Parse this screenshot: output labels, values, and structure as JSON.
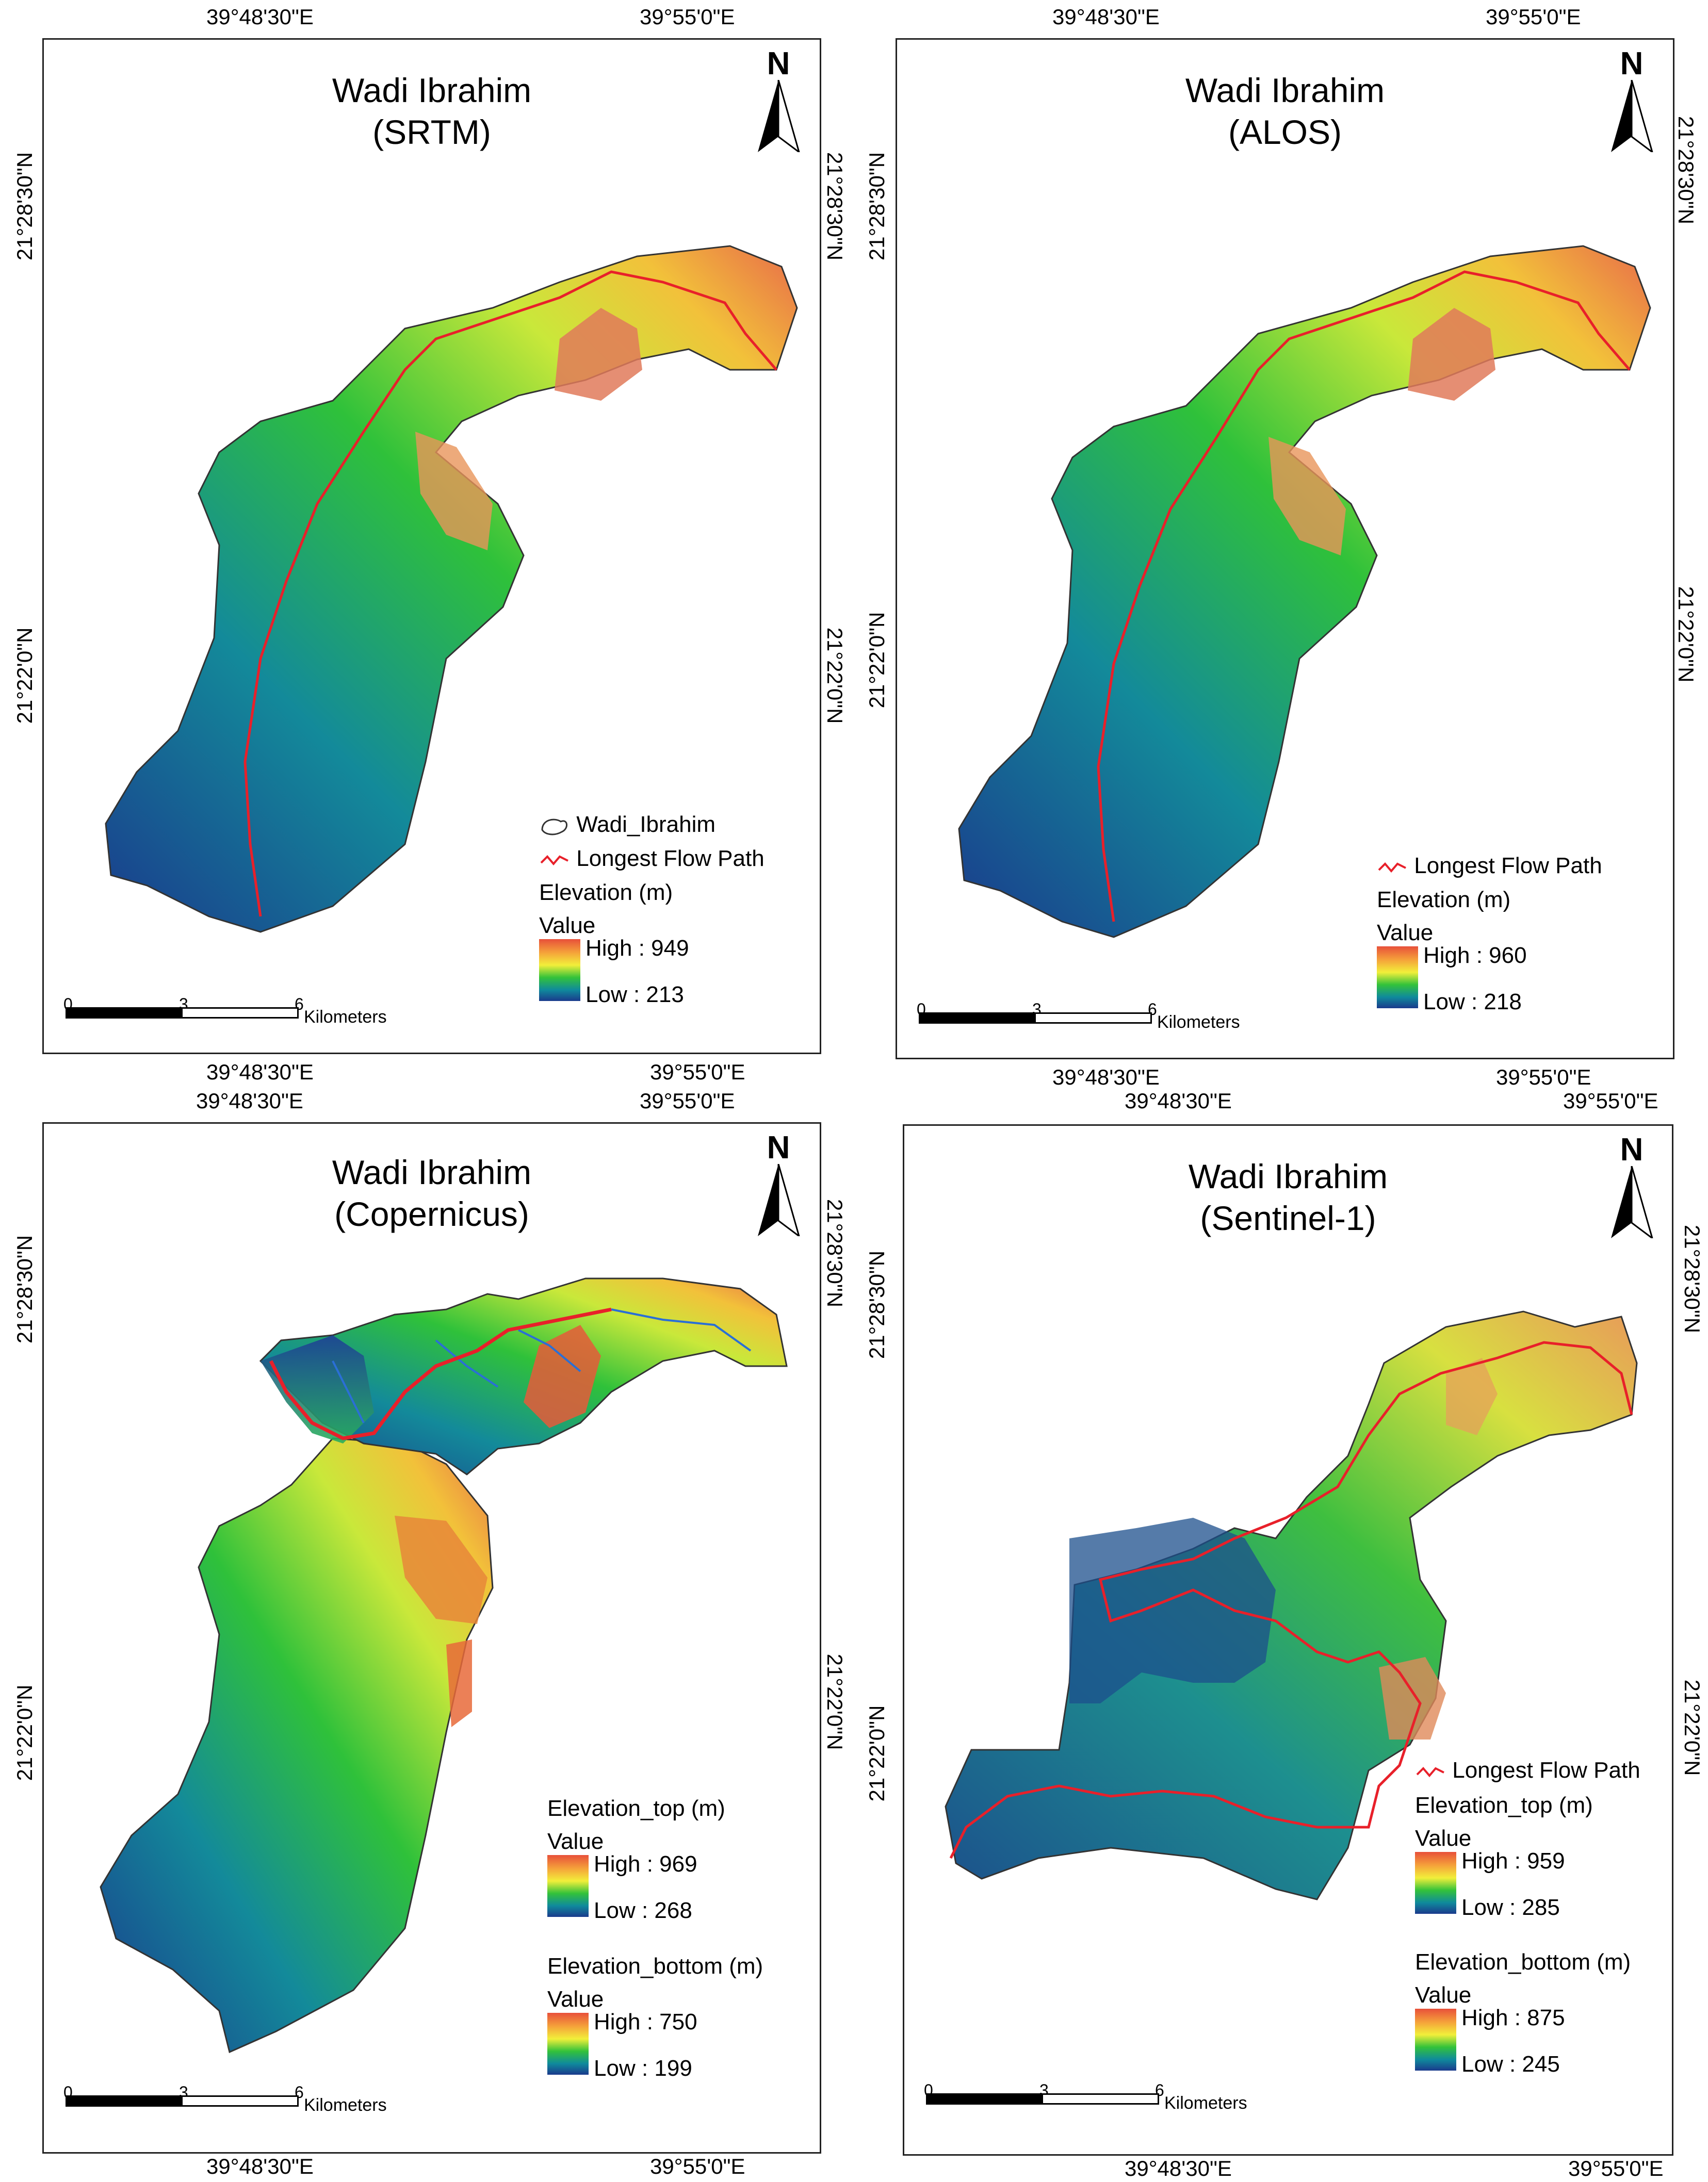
{
  "coordinate_labels": {
    "lon_west": "39°48'30\"E",
    "lon_east": "39°55'0\"E",
    "lat_north": "21°28'30\"N",
    "lat_south": "21°22'0\"N"
  },
  "north_letter": "N",
  "scale_bar": {
    "ticks": [
      "0",
      "3",
      "6"
    ],
    "unit": "Kilometers"
  },
  "panels": [
    {
      "title_line1": "Wadi Ibrahim",
      "title_line2": "(SRTM)",
      "legend": {
        "boundary_label": "Wadi_Ibrahim",
        "flow_path_label": "Longest Flow Path",
        "ramp1_title": "Elevation (m)",
        "value_label": "Value",
        "ramp1_high": "High : 949",
        "ramp1_low": "Low : 213"
      }
    },
    {
      "title_line1": "Wadi Ibrahim",
      "title_line2": "(ALOS)",
      "legend": {
        "flow_path_label": "Longest Flow Path",
        "ramp1_title": "Elevation (m)",
        "value_label": "Value",
        "ramp1_high": "High : 960",
        "ramp1_low": "Low : 218"
      }
    },
    {
      "title_line1": "Wadi Ibrahim",
      "title_line2": "(Copernicus)",
      "legend": {
        "ramp1_title": "Elevation_top (m)",
        "value_label": "Value",
        "ramp1_high": "High : 969",
        "ramp1_low": "Low : 268",
        "ramp2_title": "Elevation_bottom (m)",
        "ramp2_high": "High : 750",
        "ramp2_low": "Low : 199"
      }
    },
    {
      "title_line1": "Wadi Ibrahim",
      "title_line2": "(Sentinel-1)",
      "legend": {
        "flow_path_label": "Longest Flow Path",
        "ramp1_title": "Elevation_top (m)",
        "value_label": "Value",
        "ramp1_high": "High : 959",
        "ramp1_low": "Low : 285",
        "ramp2_title": "Elevation_bottom (m)",
        "ramp2_high": "High : 875",
        "ramp2_low": "Low : 245"
      }
    }
  ],
  "colors": {
    "high": "#e8503a",
    "mid_high": "#f2ef3a",
    "mid": "#33c23a",
    "low_mid": "#0f8a9c",
    "low": "#1a3a8c",
    "flow_path": "#e8202a",
    "stream": "#2a6fd6"
  }
}
